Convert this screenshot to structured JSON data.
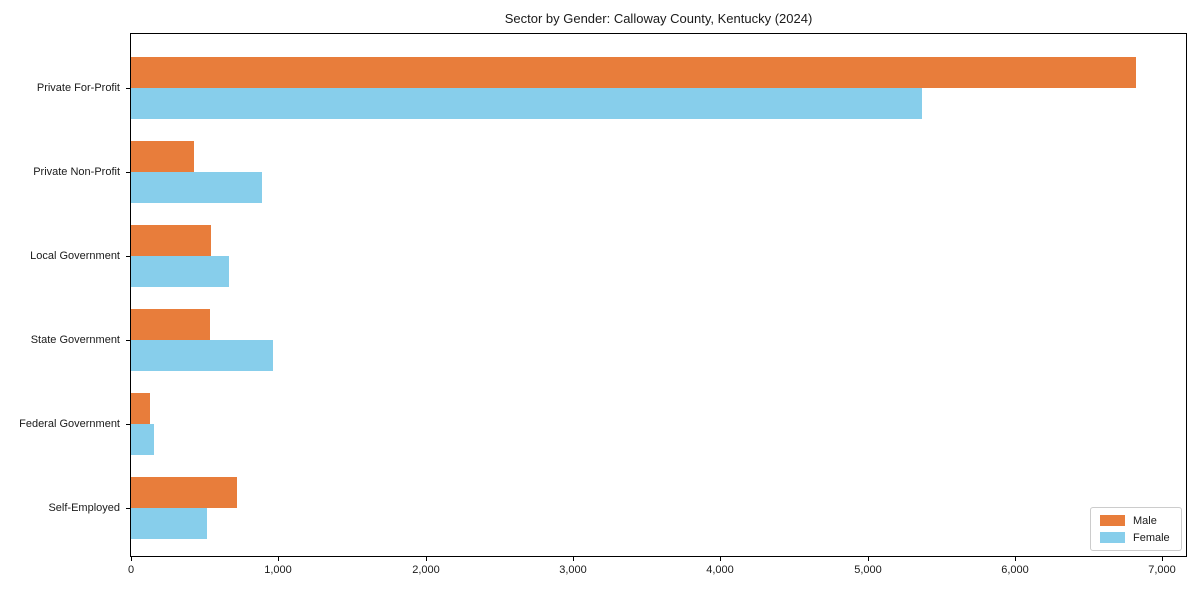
{
  "title": "Sector by Gender: Calloway County, Kentucky (2024)",
  "colors": {
    "male": "#E87D3B",
    "female": "#87CEEB",
    "axis": "#000000",
    "text": "#1a1a1a",
    "legend_border": "#cccccc",
    "background": "#ffffff"
  },
  "legend": {
    "position": "lower right",
    "items": [
      {
        "label": "Male"
      },
      {
        "label": "Female"
      }
    ]
  },
  "chart_data": {
    "type": "bar",
    "orientation": "horizontal",
    "title": "Sector by Gender: Calloway County, Kentucky (2024)",
    "categories": [
      "Private For-Profit",
      "Private Non-Profit",
      "Local Government",
      "State Government",
      "Federal Government",
      "Self-Employed"
    ],
    "series": [
      {
        "name": "Male",
        "color": "#E87D3B",
        "values": [
          6820,
          430,
          540,
          535,
          130,
          720
        ]
      },
      {
        "name": "Female",
        "color": "#87CEEB",
        "values": [
          5370,
          890,
          665,
          965,
          155,
          515
        ]
      }
    ],
    "xlabel": "",
    "ylabel": "",
    "xlim": [
      0,
      7160
    ],
    "xticks": [
      0,
      1000,
      2000,
      3000,
      4000,
      5000,
      6000,
      7000
    ],
    "xtick_labels": [
      "0",
      "1,000",
      "2,000",
      "3,000",
      "4,000",
      "5,000",
      "6,000",
      "7,000"
    ],
    "grid": false,
    "legend_position": "lower right"
  }
}
